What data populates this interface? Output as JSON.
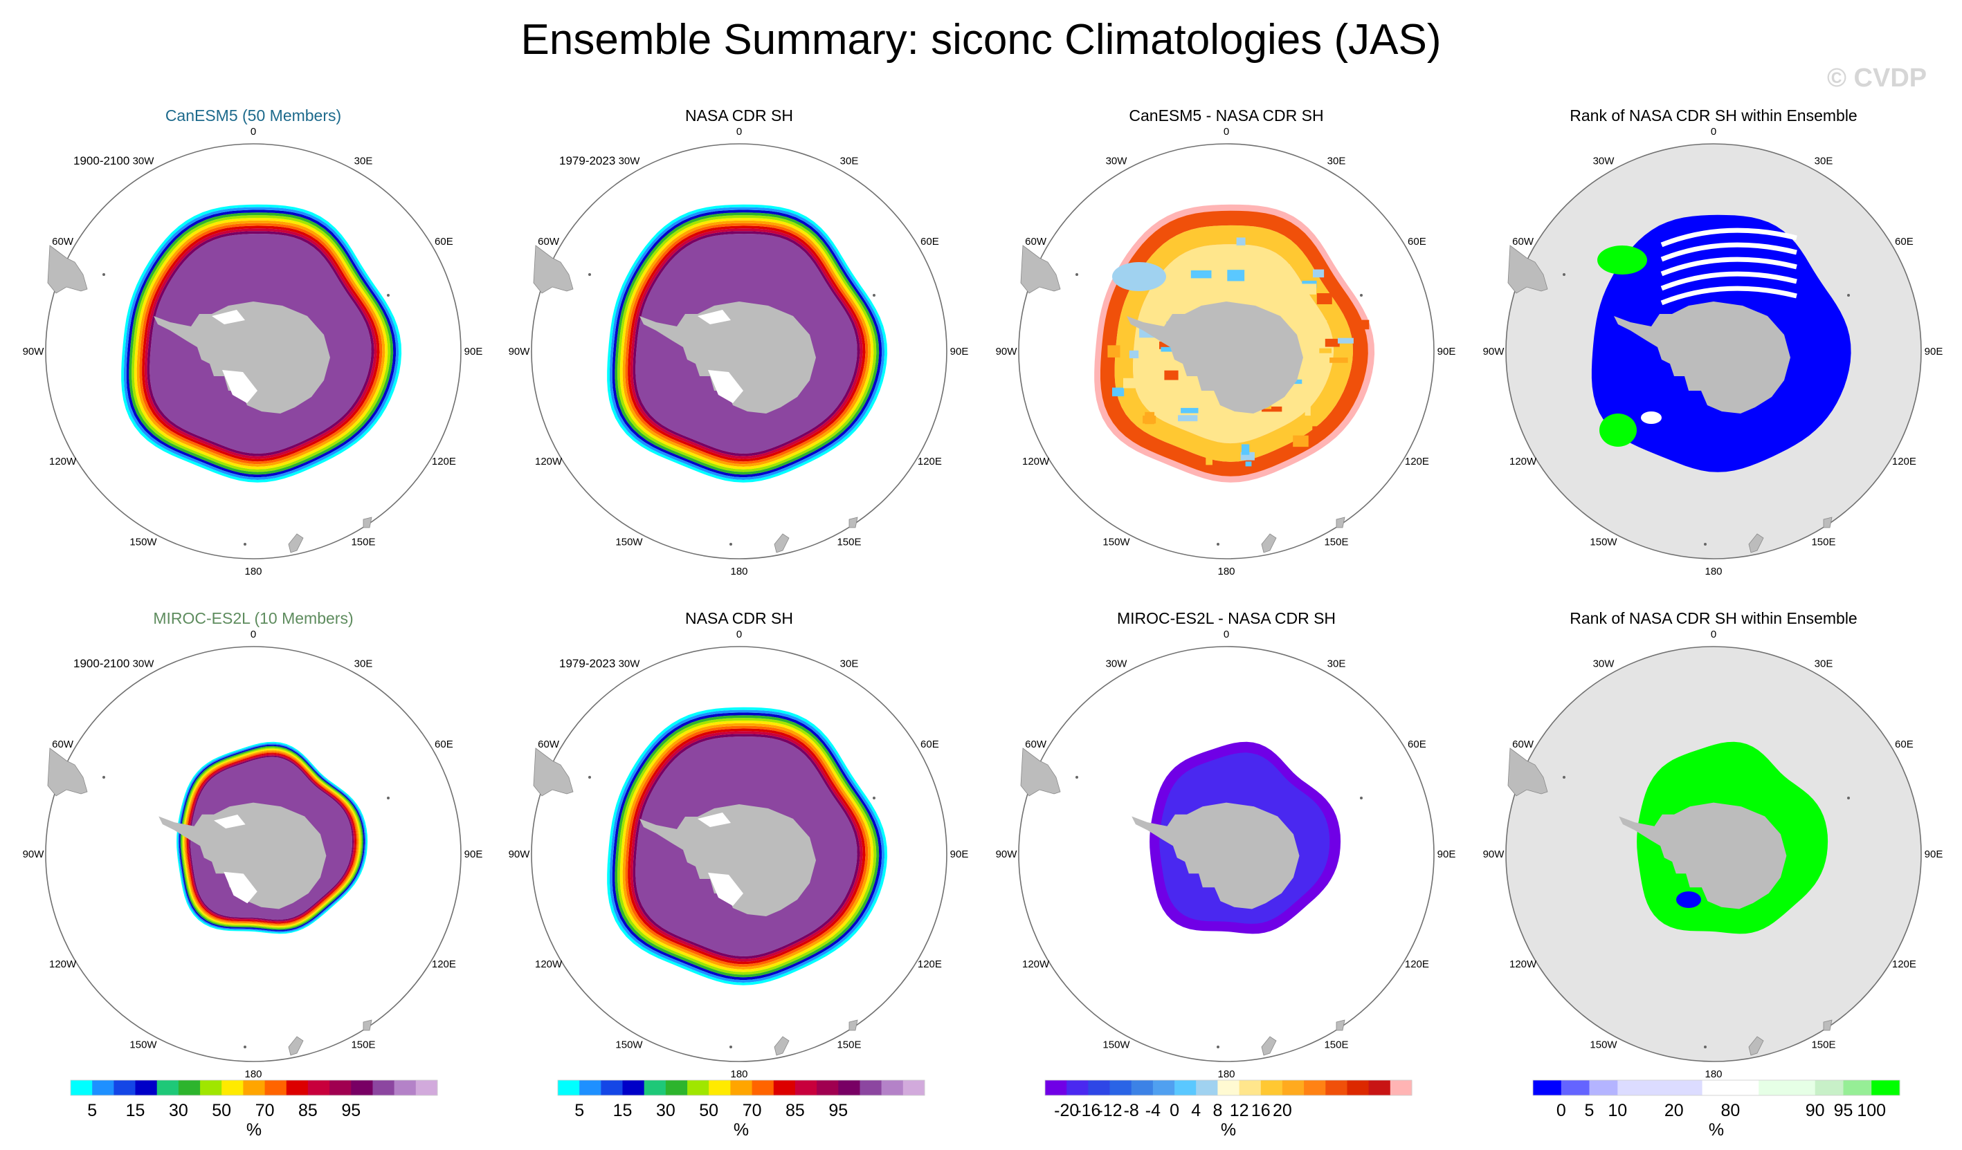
{
  "title": "Ensemble Summary: siconc Climatologies (JAS)",
  "watermark": "© CVDP",
  "colors": {
    "land": "#bcbcbc",
    "map_edge": "#707070",
    "rank_ocean": "#e4e4e4",
    "title_canesm": "#1d6a8c",
    "title_miroc": "#5e8c5e"
  },
  "lon_labels": [
    "0",
    "30E",
    "60E",
    "90E",
    "120E",
    "150E",
    "180",
    "150W",
    "120W",
    "90W",
    "60W",
    "30W"
  ],
  "colorbars": {
    "conc": {
      "colors": [
        "#00ffff",
        "#1e90ff",
        "#1446e6",
        "#0000c8",
        "#1ec878",
        "#2db42d",
        "#a0e600",
        "#ffea00",
        "#ffa500",
        "#ff6400",
        "#dc0000",
        "#c8003c",
        "#a00050",
        "#780064",
        "#8c46a0",
        "#b482c8",
        "#d2aadc"
      ],
      "labels": [
        "5",
        "15",
        "30",
        "50",
        "70",
        "85",
        "95"
      ],
      "label_pos": [
        1,
        3,
        5,
        7,
        9,
        11,
        13
      ],
      "unit": "%"
    },
    "diff": {
      "colors": [
        "#7000e6",
        "#4a28f0",
        "#2e46e6",
        "#2a64e6",
        "#3c82e6",
        "#50a0f0",
        "#5ac8ff",
        "#a0d2f0",
        "#fffad2",
        "#ffe68c",
        "#ffc832",
        "#ffaa1e",
        "#ff8214",
        "#f0500a",
        "#dc2800",
        "#c81414",
        "#ffb4b4"
      ],
      "labels": [
        "-20",
        "-16",
        "-12",
        "-8",
        "-4",
        "0",
        "4",
        "8",
        "12",
        "16",
        "20"
      ],
      "label_pos": [
        1,
        2,
        3,
        4,
        5,
        6,
        7,
        8,
        9,
        10,
        11
      ],
      "unit": "%"
    },
    "rank": {
      "colors": [
        "#0000ff",
        "#6464ff",
        "#b4b4ff",
        "#dcdcff",
        "#dcdcff",
        "#dcdcff",
        "#ffffff",
        "#ffffff",
        "#e6ffe6",
        "#e6ffe6",
        "#c8f0c8",
        "#96ee96",
        "#00ff00"
      ],
      "labels": [
        "0",
        "5",
        "10",
        "20",
        "80",
        "90",
        "95",
        "100"
      ],
      "label_pos": [
        1,
        2,
        3,
        5,
        7,
        10,
        11,
        12
      ],
      "unit": "%"
    }
  },
  "panels": [
    {
      "title": "CanESM5 (50 Members)",
      "title_color": "title_canesm",
      "years": "1900-2100",
      "type": "conc",
      "extent": "large"
    },
    {
      "title": "NASA CDR SH",
      "title_color": "",
      "years": "1979-2023",
      "type": "conc",
      "extent": "large"
    },
    {
      "title": "CanESM5 - NASA CDR SH",
      "title_color": "",
      "years": "",
      "type": "diff_pos",
      "extent": "large"
    },
    {
      "title": "Rank of NASA CDR SH within Ensemble",
      "title_color": "",
      "years": "",
      "type": "rank_blue",
      "extent": "large"
    },
    {
      "title": "MIROC-ES2L (10 Members)",
      "title_color": "title_miroc",
      "years": "1900-2100",
      "type": "conc",
      "extent": "small"
    },
    {
      "title": "NASA CDR SH",
      "title_color": "",
      "years": "1979-2023",
      "type": "conc",
      "extent": "large"
    },
    {
      "title": "MIROC-ES2L - NASA CDR SH",
      "title_color": "",
      "years": "",
      "type": "diff_neg",
      "extent": "small"
    },
    {
      "title": "Rank of NASA CDR SH within Ensemble",
      "title_color": "",
      "years": "",
      "type": "rank_green",
      "extent": "small"
    }
  ],
  "chart_data": [
    {
      "type": "heatmap",
      "projection": "south-polar stereographic",
      "title": "CanESM5 (50 Members)",
      "period": "1900-2100",
      "variable": "siconc",
      "units": "%",
      "colorbar": "conc"
    },
    {
      "type": "heatmap",
      "projection": "south-polar stereographic",
      "title": "NASA CDR SH",
      "period": "1979-2023",
      "variable": "siconc",
      "units": "%",
      "colorbar": "conc"
    },
    {
      "type": "heatmap",
      "projection": "south-polar stereographic",
      "title": "CanESM5 - NASA CDR SH",
      "variable": "siconc difference",
      "units": "%",
      "colorbar": "diff"
    },
    {
      "type": "heatmap",
      "projection": "south-polar stereographic",
      "title": "Rank of NASA CDR SH within Ensemble",
      "units": "%",
      "colorbar": "rank"
    },
    {
      "type": "heatmap",
      "projection": "south-polar stereographic",
      "title": "MIROC-ES2L (10 Members)",
      "period": "1900-2100",
      "variable": "siconc",
      "units": "%",
      "colorbar": "conc"
    },
    {
      "type": "heatmap",
      "projection": "south-polar stereographic",
      "title": "NASA CDR SH",
      "period": "1979-2023",
      "variable": "siconc",
      "units": "%",
      "colorbar": "conc"
    },
    {
      "type": "heatmap",
      "projection": "south-polar stereographic",
      "title": "MIROC-ES2L - NASA CDR SH",
      "variable": "siconc difference",
      "units": "%",
      "colorbar": "diff"
    },
    {
      "type": "heatmap",
      "projection": "south-polar stereographic",
      "title": "Rank of NASA CDR SH within Ensemble",
      "units": "%",
      "colorbar": "rank"
    }
  ]
}
